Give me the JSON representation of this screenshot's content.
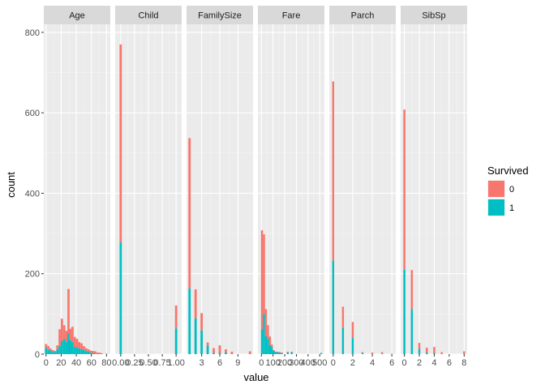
{
  "chart_data": {
    "type": "bar",
    "stacked": true,
    "facet_by": "variable",
    "facet_scales": "free_x",
    "xlabel": "value",
    "ylabel": "count",
    "ylim": [
      0,
      820
    ],
    "y_ticks": [
      0,
      200,
      400,
      600,
      800
    ],
    "grid": true,
    "legend": {
      "title": "Survived",
      "placement": "right",
      "entries": [
        {
          "label": "0",
          "color": "#F8766D"
        },
        {
          "label": "1",
          "color": "#00BFC4"
        }
      ]
    },
    "panels": [
      {
        "name": "Age",
        "xlim": [
          -3,
          85
        ],
        "x_ticks": [
          0,
          20,
          40,
          60,
          80
        ],
        "x_tick_labels": [
          "0",
          "20",
          "40",
          "60",
          "80"
        ],
        "bin_width": 2.9,
        "bins": [
          {
            "x": 0,
            "total": 25,
            "survived": 15
          },
          {
            "x": 3,
            "total": 20,
            "survived": 10
          },
          {
            "x": 6,
            "total": 14,
            "survived": 9
          },
          {
            "x": 9,
            "total": 10,
            "survived": 5
          },
          {
            "x": 12,
            "total": 8,
            "survived": 5
          },
          {
            "x": 15,
            "total": 22,
            "survived": 12
          },
          {
            "x": 18,
            "total": 62,
            "survived": 20
          },
          {
            "x": 21,
            "total": 88,
            "survived": 33
          },
          {
            "x": 24,
            "total": 72,
            "survived": 38
          },
          {
            "x": 27,
            "total": 58,
            "survived": 30
          },
          {
            "x": 29.7,
            "total": 162,
            "survived": 52
          },
          {
            "x": 32,
            "total": 63,
            "survived": 35
          },
          {
            "x": 35,
            "total": 68,
            "survived": 30
          },
          {
            "x": 38,
            "total": 43,
            "survived": 18
          },
          {
            "x": 41,
            "total": 38,
            "survived": 16
          },
          {
            "x": 44,
            "total": 30,
            "survived": 14
          },
          {
            "x": 47,
            "total": 27,
            "survived": 12
          },
          {
            "x": 50,
            "total": 20,
            "survived": 10
          },
          {
            "x": 53,
            "total": 15,
            "survived": 7
          },
          {
            "x": 56,
            "total": 12,
            "survived": 6
          },
          {
            "x": 59,
            "total": 9,
            "survived": 3
          },
          {
            "x": 62,
            "total": 8,
            "survived": 3
          },
          {
            "x": 65,
            "total": 7,
            "survived": 1
          },
          {
            "x": 68,
            "total": 4,
            "survived": 0
          },
          {
            "x": 71,
            "total": 4,
            "survived": 0
          },
          {
            "x": 74,
            "total": 2,
            "survived": 0
          },
          {
            "x": 80,
            "total": 1,
            "survived": 1
          }
        ]
      },
      {
        "name": "Child",
        "xlim": [
          -0.1,
          1.1
        ],
        "x_ticks": [
          0,
          0.25,
          0.5,
          0.75,
          1
        ],
        "x_tick_labels": [
          "0.00",
          "0.25",
          "0.50",
          "0.75",
          "1.00"
        ],
        "bin_width": 0.04,
        "bins": [
          {
            "x": 0,
            "total": 770,
            "survived": 278
          },
          {
            "x": 1,
            "total": 121,
            "survived": 64
          }
        ]
      },
      {
        "name": "FamilySize",
        "xlim": [
          0.5,
          11.5
        ],
        "x_ticks": [
          3,
          6,
          9
        ],
        "x_tick_labels": [
          "3",
          "6",
          "9"
        ],
        "bin_width": 0.38,
        "bins": [
          {
            "x": 1,
            "total": 537,
            "survived": 163
          },
          {
            "x": 2,
            "total": 161,
            "survived": 89
          },
          {
            "x": 3,
            "total": 102,
            "survived": 59
          },
          {
            "x": 4,
            "total": 29,
            "survived": 21
          },
          {
            "x": 5,
            "total": 15,
            "survived": 3
          },
          {
            "x": 6,
            "total": 22,
            "survived": 3
          },
          {
            "x": 7,
            "total": 12,
            "survived": 4
          },
          {
            "x": 8,
            "total": 6,
            "survived": 0
          },
          {
            "x": 11,
            "total": 7,
            "survived": 0
          }
        ]
      },
      {
        "name": "Fare",
        "xlim": [
          -30,
          540
        ],
        "x_ticks": [
          0,
          100,
          200,
          300,
          400,
          500
        ],
        "x_tick_labels": [
          "0",
          "100",
          "200",
          "300",
          "400",
          "500"
        ],
        "bin_width": 17,
        "bins": [
          {
            "x": 5,
            "total": 308,
            "survived": 62
          },
          {
            "x": 22,
            "total": 298,
            "survived": 100
          },
          {
            "x": 39,
            "total": 112,
            "survived": 45
          },
          {
            "x": 56,
            "total": 72,
            "survived": 38
          },
          {
            "x": 73,
            "total": 44,
            "survived": 22
          },
          {
            "x": 90,
            "total": 24,
            "survived": 18
          },
          {
            "x": 107,
            "total": 10,
            "survived": 7
          },
          {
            "x": 124,
            "total": 6,
            "survived": 5
          },
          {
            "x": 141,
            "total": 6,
            "survived": 4
          },
          {
            "x": 158,
            "total": 5,
            "survived": 4
          },
          {
            "x": 175,
            "total": 4,
            "survived": 2
          },
          {
            "x": 226,
            "total": 6,
            "survived": 4
          },
          {
            "x": 260,
            "total": 6,
            "survived": 5
          },
          {
            "x": 512,
            "total": 3,
            "survived": 3
          }
        ]
      },
      {
        "name": "Parch",
        "xlim": [
          -0.4,
          6.4
        ],
        "x_ticks": [
          0,
          2,
          4,
          6
        ],
        "x_tick_labels": [
          "0",
          "2",
          "4",
          "6"
        ],
        "bin_width": 0.2,
        "bins": [
          {
            "x": 0,
            "total": 678,
            "survived": 233
          },
          {
            "x": 1,
            "total": 118,
            "survived": 65
          },
          {
            "x": 2,
            "total": 80,
            "survived": 40
          },
          {
            "x": 3,
            "total": 5,
            "survived": 3
          },
          {
            "x": 4,
            "total": 4,
            "survived": 0
          },
          {
            "x": 5,
            "total": 5,
            "survived": 1
          },
          {
            "x": 6,
            "total": 1,
            "survived": 0
          }
        ]
      },
      {
        "name": "SibSp",
        "xlim": [
          -0.5,
          8.4
        ],
        "x_ticks": [
          0,
          2,
          4,
          6,
          8
        ],
        "x_tick_labels": [
          "0",
          "2",
          "4",
          "6",
          "8"
        ],
        "bin_width": 0.27,
        "bins": [
          {
            "x": 0,
            "total": 608,
            "survived": 210
          },
          {
            "x": 1,
            "total": 209,
            "survived": 112
          },
          {
            "x": 2,
            "total": 28,
            "survived": 13
          },
          {
            "x": 3,
            "total": 16,
            "survived": 4
          },
          {
            "x": 4,
            "total": 18,
            "survived": 3
          },
          {
            "x": 5,
            "total": 5,
            "survived": 0
          },
          {
            "x": 8,
            "total": 7,
            "survived": 0
          }
        ]
      }
    ]
  }
}
